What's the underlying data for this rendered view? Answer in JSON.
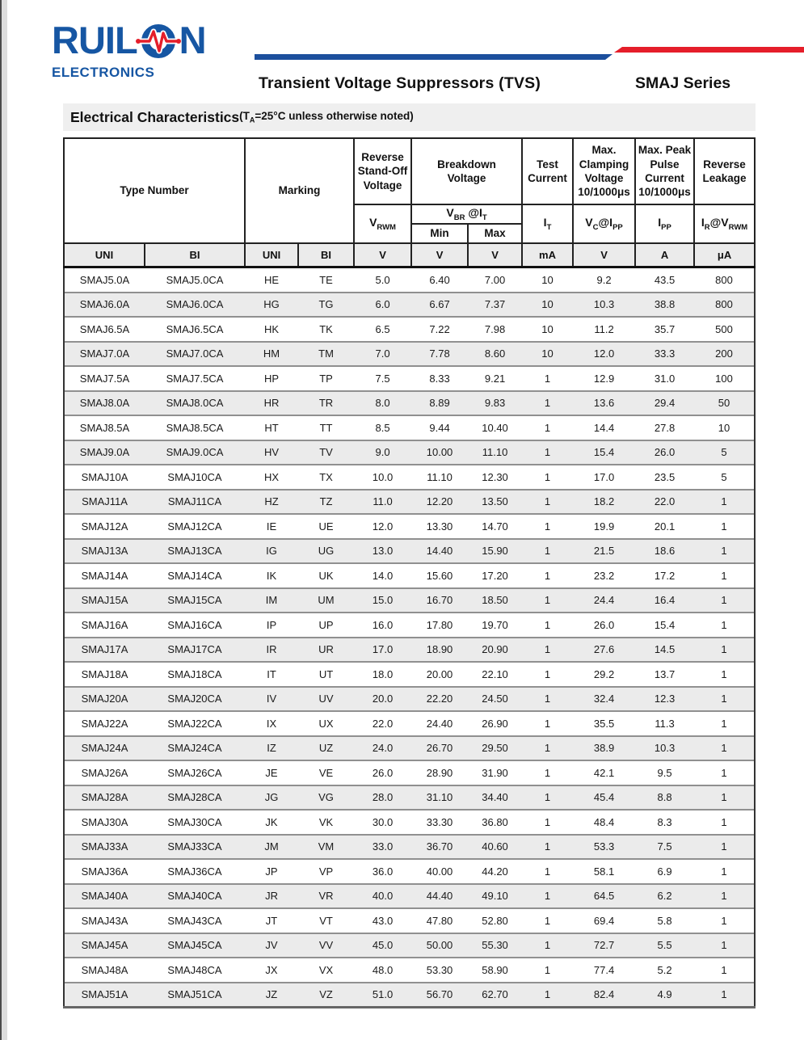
{
  "logo": {
    "pre": "RUIL",
    "post": "N",
    "sub": "ELECTRONICS",
    "brand_color": "#1656a3",
    "pulse_color": "#e51e2a"
  },
  "header": {
    "doc_title": "Transient Voltage Suppressors (TVS)",
    "series": "SMAJ Series"
  },
  "section": {
    "title": "Electrical Characteristics",
    "note": [
      "(T",
      "A",
      "=25°C unless otherwise noted)"
    ]
  },
  "table": {
    "groups": {
      "type_number": "Type Number",
      "marking": "Marking",
      "reverse_standoff": "Reverse Stand-Off Voltage",
      "breakdown": "Breakdown Voltage",
      "test_current": "Test Current",
      "max_clamping": "Max. Clamping Voltage 10/1000μs",
      "max_peak_pulse": "Max. Peak Pulse Current 10/1000μs",
      "reverse_leakage": "Reverse Leakage"
    },
    "symbols": {
      "vrwm": [
        "V",
        "RWM"
      ],
      "vbr": [
        "V",
        "BR",
        " @I",
        "T"
      ],
      "min": "Min",
      "max": "Max",
      "it": [
        "I",
        "T"
      ],
      "vc": [
        "V",
        "C",
        "@I",
        "PP"
      ],
      "ipp": [
        "I",
        "PP"
      ],
      "ir": [
        "I",
        "R",
        "@V",
        "RWM"
      ]
    },
    "units": [
      "UNI",
      "BI",
      "UNI",
      "BI",
      "V",
      "V",
      "V",
      "mA",
      "V",
      "A",
      "μA"
    ],
    "rows": [
      [
        "SMAJ5.0A",
        "SMAJ5.0CA",
        "HE",
        "TE",
        "5.0",
        "6.40",
        "7.00",
        "10",
        "9.2",
        "43.5",
        "800"
      ],
      [
        "SMAJ6.0A",
        "SMAJ6.0CA",
        "HG",
        "TG",
        "6.0",
        "6.67",
        "7.37",
        "10",
        "10.3",
        "38.8",
        "800"
      ],
      [
        "SMAJ6.5A",
        "SMAJ6.5CA",
        "HK",
        "TK",
        "6.5",
        "7.22",
        "7.98",
        "10",
        "11.2",
        "35.7",
        "500"
      ],
      [
        "SMAJ7.0A",
        "SMAJ7.0CA",
        "HM",
        "TM",
        "7.0",
        "7.78",
        "8.60",
        "10",
        "12.0",
        "33.3",
        "200"
      ],
      [
        "SMAJ7.5A",
        "SMAJ7.5CA",
        "HP",
        "TP",
        "7.5",
        "8.33",
        "9.21",
        "1",
        "12.9",
        "31.0",
        "100"
      ],
      [
        "SMAJ8.0A",
        "SMAJ8.0CA",
        "HR",
        "TR",
        "8.0",
        "8.89",
        "9.83",
        "1",
        "13.6",
        "29.4",
        "50"
      ],
      [
        "SMAJ8.5A",
        "SMAJ8.5CA",
        "HT",
        "TT",
        "8.5",
        "9.44",
        "10.40",
        "1",
        "14.4",
        "27.8",
        "10"
      ],
      [
        "SMAJ9.0A",
        "SMAJ9.0CA",
        "HV",
        "TV",
        "9.0",
        "10.00",
        "11.10",
        "1",
        "15.4",
        "26.0",
        "5"
      ],
      [
        "SMAJ10A",
        "SMAJ10CA",
        "HX",
        "TX",
        "10.0",
        "11.10",
        "12.30",
        "1",
        "17.0",
        "23.5",
        "5"
      ],
      [
        "SMAJ11A",
        "SMAJ11CA",
        "HZ",
        "TZ",
        "11.0",
        "12.20",
        "13.50",
        "1",
        "18.2",
        "22.0",
        "1"
      ],
      [
        "SMAJ12A",
        "SMAJ12CA",
        "IE",
        "UE",
        "12.0",
        "13.30",
        "14.70",
        "1",
        "19.9",
        "20.1",
        "1"
      ],
      [
        "SMAJ13A",
        "SMAJ13CA",
        "IG",
        "UG",
        "13.0",
        "14.40",
        "15.90",
        "1",
        "21.5",
        "18.6",
        "1"
      ],
      [
        "SMAJ14A",
        "SMAJ14CA",
        "IK",
        "UK",
        "14.0",
        "15.60",
        "17.20",
        "1",
        "23.2",
        "17.2",
        "1"
      ],
      [
        "SMAJ15A",
        "SMAJ15CA",
        "IM",
        "UM",
        "15.0",
        "16.70",
        "18.50",
        "1",
        "24.4",
        "16.4",
        "1"
      ],
      [
        "SMAJ16A",
        "SMAJ16CA",
        "IP",
        "UP",
        "16.0",
        "17.80",
        "19.70",
        "1",
        "26.0",
        "15.4",
        "1"
      ],
      [
        "SMAJ17A",
        "SMAJ17CA",
        "IR",
        "UR",
        "17.0",
        "18.90",
        "20.90",
        "1",
        "27.6",
        "14.5",
        "1"
      ],
      [
        "SMAJ18A",
        "SMAJ18CA",
        "IT",
        "UT",
        "18.0",
        "20.00",
        "22.10",
        "1",
        "29.2",
        "13.7",
        "1"
      ],
      [
        "SMAJ20A",
        "SMAJ20CA",
        "IV",
        "UV",
        "20.0",
        "22.20",
        "24.50",
        "1",
        "32.4",
        "12.3",
        "1"
      ],
      [
        "SMAJ22A",
        "SMAJ22CA",
        "IX",
        "UX",
        "22.0",
        "24.40",
        "26.90",
        "1",
        "35.5",
        "11.3",
        "1"
      ],
      [
        "SMAJ24A",
        "SMAJ24CA",
        "IZ",
        "UZ",
        "24.0",
        "26.70",
        "29.50",
        "1",
        "38.9",
        "10.3",
        "1"
      ],
      [
        "SMAJ26A",
        "SMAJ26CA",
        "JE",
        "VE",
        "26.0",
        "28.90",
        "31.90",
        "1",
        "42.1",
        "9.5",
        "1"
      ],
      [
        "SMAJ28A",
        "SMAJ28CA",
        "JG",
        "VG",
        "28.0",
        "31.10",
        "34.40",
        "1",
        "45.4",
        "8.8",
        "1"
      ],
      [
        "SMAJ30A",
        "SMAJ30CA",
        "JK",
        "VK",
        "30.0",
        "33.30",
        "36.80",
        "1",
        "48.4",
        "8.3",
        "1"
      ],
      [
        "SMAJ33A",
        "SMAJ33CA",
        "JM",
        "VM",
        "33.0",
        "36.70",
        "40.60",
        "1",
        "53.3",
        "7.5",
        "1"
      ],
      [
        "SMAJ36A",
        "SMAJ36CA",
        "JP",
        "VP",
        "36.0",
        "40.00",
        "44.20",
        "1",
        "58.1",
        "6.9",
        "1"
      ],
      [
        "SMAJ40A",
        "SMAJ40CA",
        "JR",
        "VR",
        "40.0",
        "44.40",
        "49.10",
        "1",
        "64.5",
        "6.2",
        "1"
      ],
      [
        "SMAJ43A",
        "SMAJ43CA",
        "JT",
        "VT",
        "43.0",
        "47.80",
        "52.80",
        "1",
        "69.4",
        "5.8",
        "1"
      ],
      [
        "SMAJ45A",
        "SMAJ45CA",
        "JV",
        "VV",
        "45.0",
        "50.00",
        "55.30",
        "1",
        "72.7",
        "5.5",
        "1"
      ],
      [
        "SMAJ48A",
        "SMAJ48CA",
        "JX",
        "VX",
        "48.0",
        "53.30",
        "58.90",
        "1",
        "77.4",
        "5.2",
        "1"
      ],
      [
        "SMAJ51A",
        "SMAJ51CA",
        "JZ",
        "VZ",
        "51.0",
        "56.70",
        "62.70",
        "1",
        "82.4",
        "4.9",
        "1"
      ]
    ]
  }
}
